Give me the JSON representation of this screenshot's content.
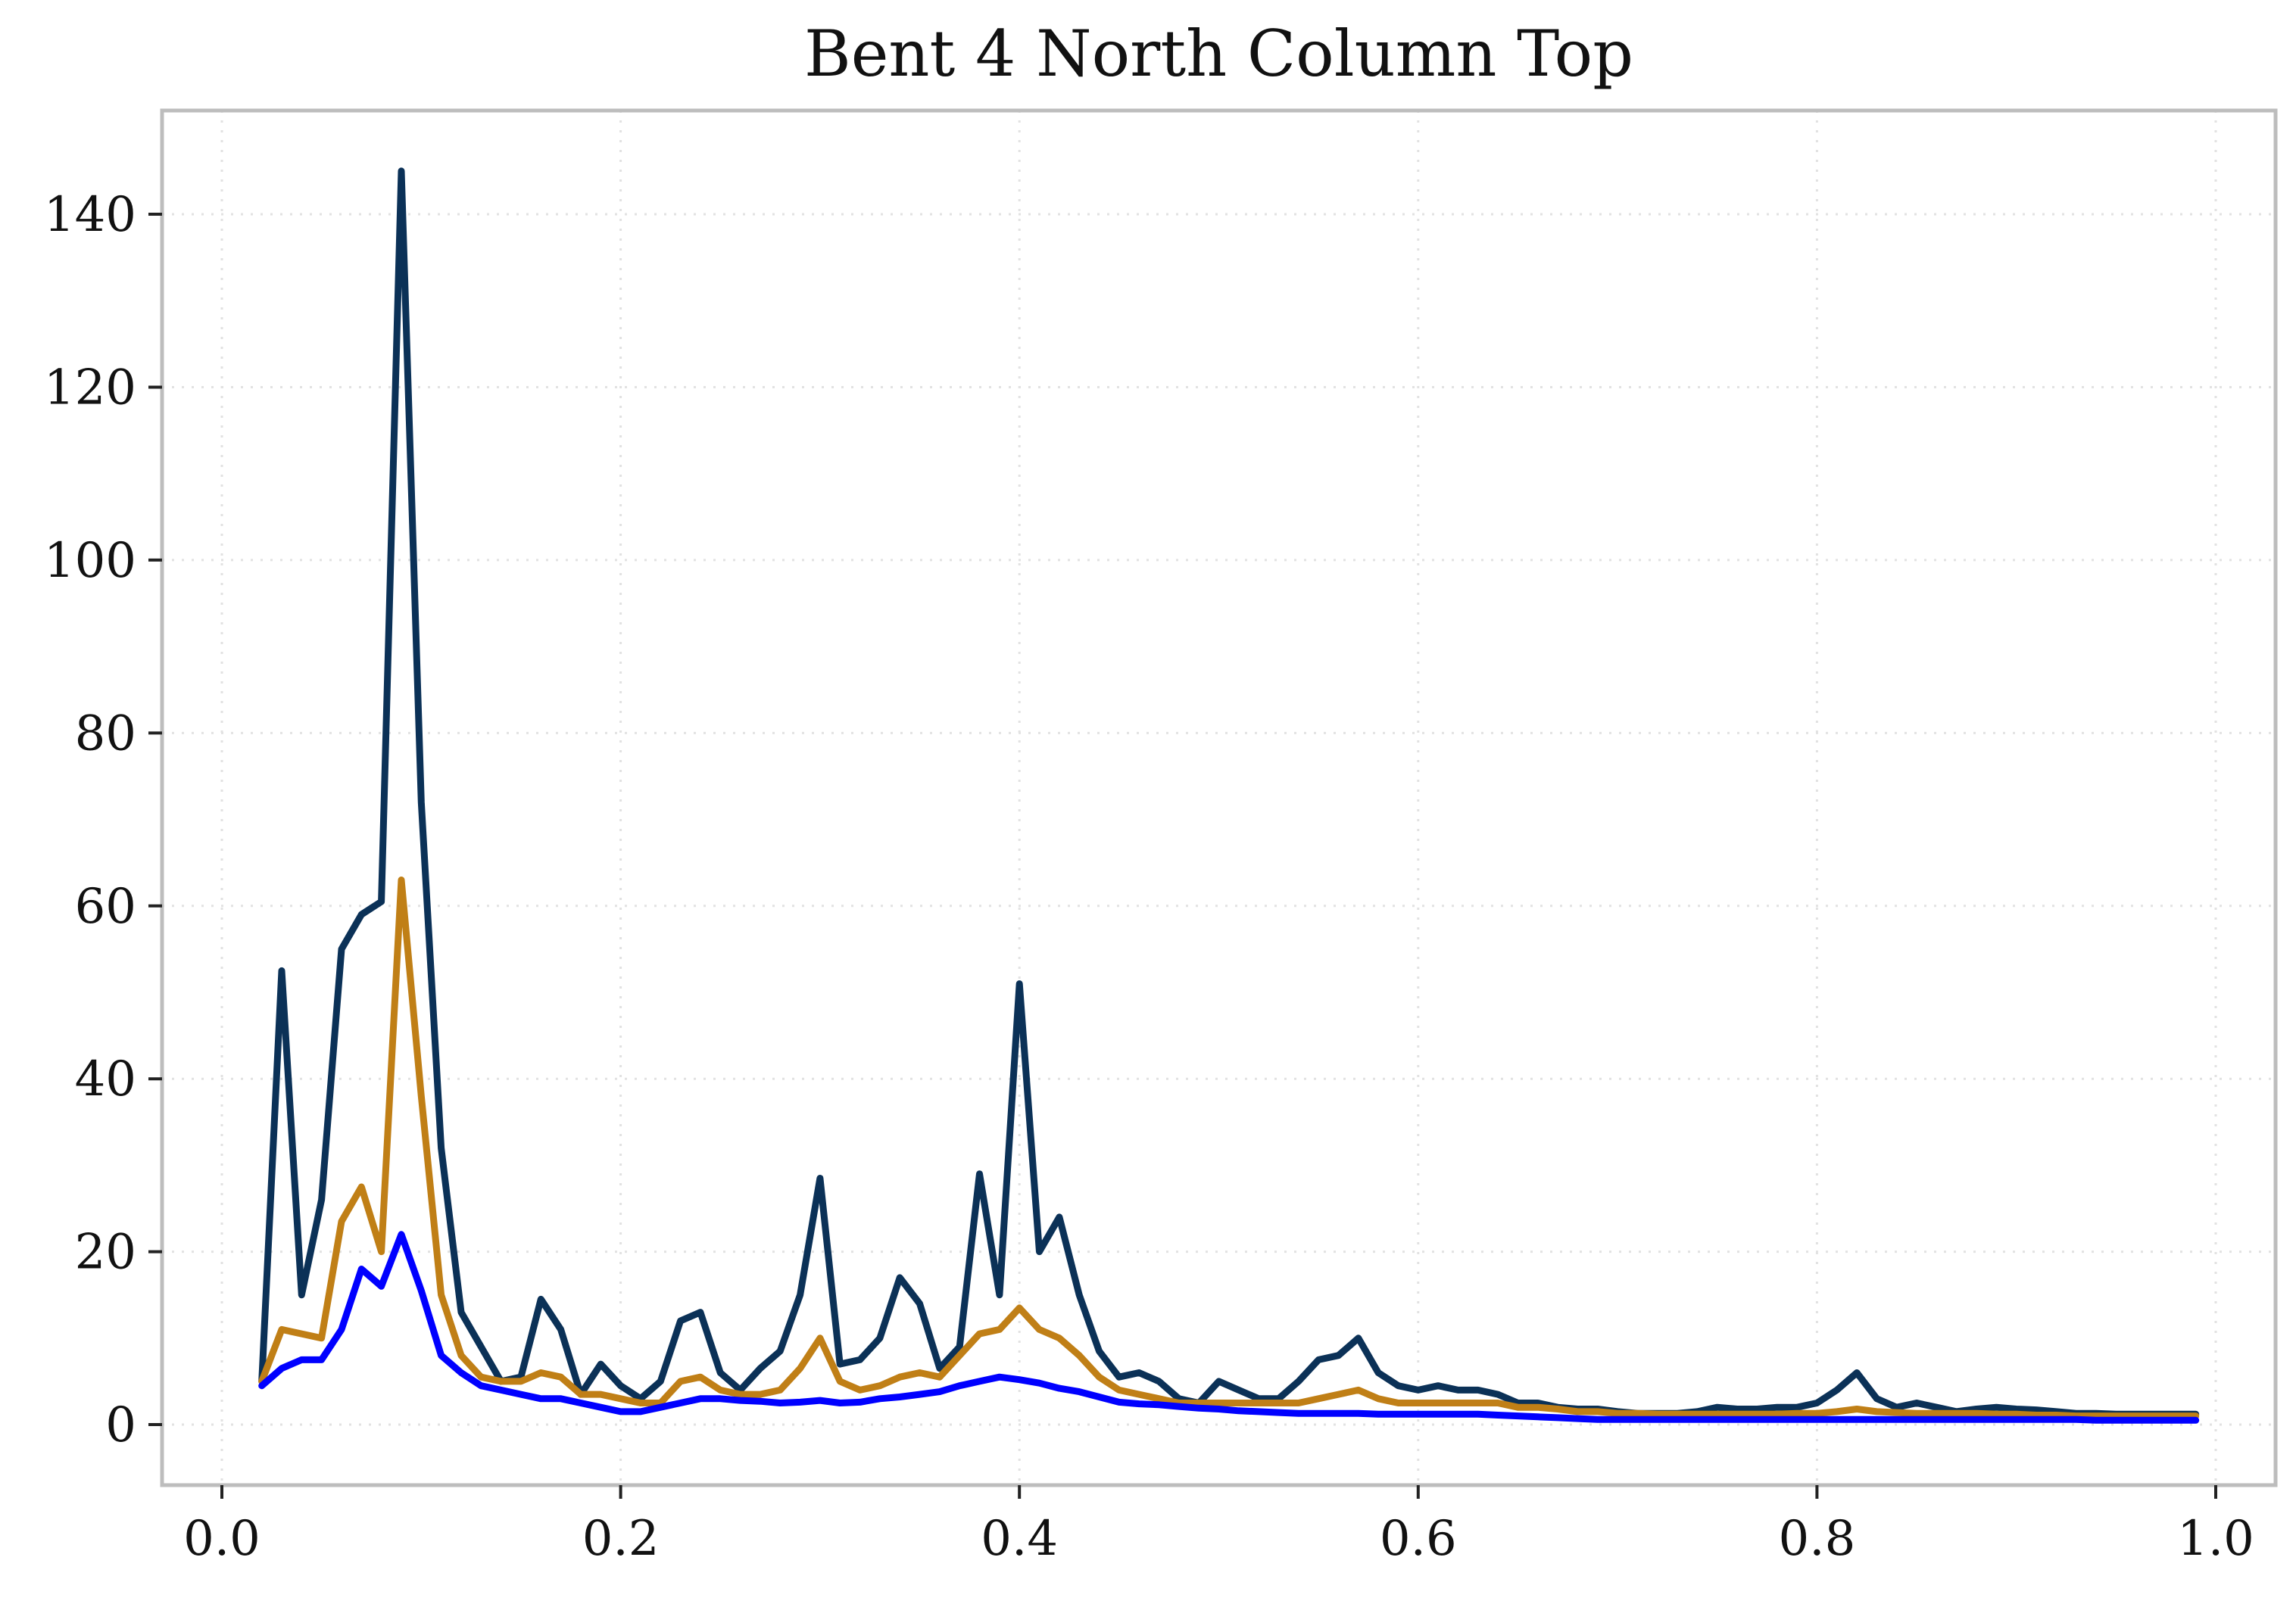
{
  "chart_data": {
    "type": "line",
    "title": "Bent 4 North Column Top",
    "xlabel": "",
    "ylabel": "",
    "xlim": [
      -0.03,
      1.03
    ],
    "ylim": [
      -7,
      152
    ],
    "xticks": [
      0.0,
      0.2,
      0.4,
      0.6,
      0.8,
      1.0
    ],
    "xtick_labels": [
      "0.0",
      "0.2",
      "0.4",
      "0.6",
      "0.8",
      "1.0"
    ],
    "yticks": [
      0,
      20,
      40,
      60,
      80,
      100,
      120,
      140
    ],
    "ytick_labels": [
      "0",
      "20",
      "40",
      "60",
      "80",
      "100",
      "120",
      "140"
    ],
    "grid": true,
    "legend": "none",
    "x": [
      0.02,
      0.03,
      0.04,
      0.05,
      0.06,
      0.07,
      0.08,
      0.09,
      0.1,
      0.11,
      0.12,
      0.13,
      0.14,
      0.15,
      0.16,
      0.17,
      0.18,
      0.19,
      0.2,
      0.21,
      0.22,
      0.23,
      0.24,
      0.25,
      0.26,
      0.27,
      0.28,
      0.29,
      0.3,
      0.31,
      0.32,
      0.33,
      0.34,
      0.35,
      0.36,
      0.37,
      0.38,
      0.39,
      0.4,
      0.41,
      0.42,
      0.43,
      0.44,
      0.45,
      0.46,
      0.47,
      0.48,
      0.49,
      0.5,
      0.51,
      0.52,
      0.53,
      0.54,
      0.55,
      0.56,
      0.57,
      0.58,
      0.59,
      0.6,
      0.61,
      0.62,
      0.63,
      0.64,
      0.65,
      0.66,
      0.67,
      0.68,
      0.69,
      0.7,
      0.71,
      0.72,
      0.73,
      0.74,
      0.75,
      0.76,
      0.77,
      0.78,
      0.79,
      0.8,
      0.81,
      0.82,
      0.83,
      0.84,
      0.85,
      0.86,
      0.87,
      0.88,
      0.89,
      0.9,
      0.91,
      0.92,
      0.93,
      0.94,
      0.95,
      0.96,
      0.97,
      0.98,
      0.99
    ],
    "series": [
      {
        "color": "#0b3157",
        "values": [
          5,
          52.5,
          15,
          26,
          55,
          59,
          60.5,
          145,
          72,
          32,
          13,
          9,
          5,
          5.5,
          14.5,
          11,
          3.5,
          7,
          4.5,
          3,
          5,
          12,
          13,
          6,
          4,
          6.5,
          8.5,
          15,
          28.5,
          7,
          7.5,
          10,
          17,
          14,
          6.5,
          9,
          29,
          15,
          51,
          20,
          24,
          15,
          8.5,
          5.5,
          6,
          5,
          3,
          2.5,
          5,
          4,
          3,
          3,
          5,
          7.5,
          8,
          10,
          6,
          4.5,
          4,
          4.5,
          4,
          4,
          3.5,
          2.5,
          2.5,
          2,
          1.8,
          1.8,
          1.5,
          1.3,
          1.3,
          1.3,
          1.5,
          2,
          1.8,
          1.8,
          2,
          2,
          2.5,
          4,
          6,
          3,
          2,
          2.5,
          2,
          1.5,
          1.8,
          2,
          1.8,
          1.7,
          1.5,
          1.3,
          1.3,
          1.2,
          1.2,
          1.2,
          1.2,
          1.2
        ]
      },
      {
        "color": "#c07f16",
        "values": [
          5,
          11,
          10.5,
          10,
          23.5,
          27.5,
          20,
          63,
          38,
          15,
          8,
          5.5,
          5,
          5,
          6,
          5.5,
          3.5,
          3.5,
          3,
          2.5,
          2.5,
          5,
          5.5,
          4,
          3.5,
          3.5,
          4,
          6.5,
          10,
          5,
          4,
          4.5,
          5.5,
          6,
          5.5,
          8,
          10.5,
          11,
          13.5,
          11,
          10,
          8,
          5.5,
          4,
          3.5,
          3,
          2.5,
          2.5,
          2.5,
          2.5,
          2.5,
          2.5,
          2.5,
          3,
          3.5,
          4,
          3,
          2.5,
          2.5,
          2.5,
          2.5,
          2.5,
          2.5,
          2,
          2,
          1.8,
          1.5,
          1.5,
          1.3,
          1.3,
          1.2,
          1.2,
          1.2,
          1.2,
          1.2,
          1.2,
          1.2,
          1.3,
          1.3,
          1.5,
          1.8,
          1.5,
          1.4,
          1.3,
          1.3,
          1.3,
          1.3,
          1.2,
          1.2,
          1.1,
          1.1,
          1.0,
          1.0,
          1.0,
          1.0,
          1.0,
          1.0,
          1.0
        ]
      },
      {
        "color": "#0000ff",
        "values": [
          4.5,
          6.5,
          7.5,
          7.5,
          11,
          18,
          16,
          22,
          15.5,
          8,
          6,
          4.5,
          4,
          3.5,
          3,
          3,
          2.5,
          2,
          1.5,
          1.5,
          2,
          2.5,
          3,
          3,
          2.8,
          2.7,
          2.5,
          2.6,
          2.8,
          2.5,
          2.6,
          3,
          3.2,
          3.5,
          3.8,
          4.5,
          5,
          5.5,
          5.2,
          4.8,
          4.2,
          3.8,
          3.2,
          2.6,
          2.4,
          2.3,
          2.1,
          1.9,
          1.8,
          1.6,
          1.5,
          1.4,
          1.3,
          1.3,
          1.3,
          1.3,
          1.2,
          1.2,
          1.2,
          1.2,
          1.2,
          1.2,
          1.1,
          1.0,
          0.9,
          0.8,
          0.7,
          0.6,
          0.6,
          0.6,
          0.6,
          0.6,
          0.6,
          0.6,
          0.6,
          0.6,
          0.6,
          0.6,
          0.6,
          0.6,
          0.6,
          0.6,
          0.6,
          0.6,
          0.6,
          0.6,
          0.6,
          0.6,
          0.6,
          0.6,
          0.6,
          0.6,
          0.5,
          0.5,
          0.5,
          0.5,
          0.5,
          0.5
        ]
      }
    ]
  }
}
